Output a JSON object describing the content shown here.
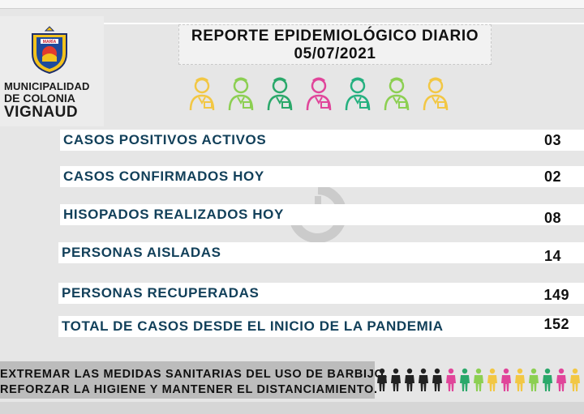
{
  "logo": {
    "crest_text": "MARÍA",
    "line1": "MUNICIPALIDAD",
    "line2": "DE COLONIA",
    "line3": "VIGNAUD"
  },
  "header": {
    "title": "REPORTE EPIDEMIOLÓGICO DIARIO",
    "date": "05/07/2021"
  },
  "workers": {
    "icons": [
      "doctor-icon",
      "nurse-icon",
      "builder-icon",
      "health-worker-icon",
      "delivery-worker-icon",
      "farmer-icon",
      "firefighter-icon"
    ],
    "colors": [
      "#f2c744",
      "#8ccf52",
      "#2aa86a",
      "#e0459a",
      "#25b07f",
      "#8ccf52",
      "#f2c744"
    ]
  },
  "stats": [
    {
      "label": "CASOS POSITIVOS ACTIVOS",
      "value": "03"
    },
    {
      "label": "CASOS CONFIRMADOS HOY",
      "value": "02"
    },
    {
      "label": "HISOPADOS REALIZADOS HOY",
      "value": "08"
    },
    {
      "label": "PERSONAS AISLADAS",
      "value": "14"
    },
    {
      "label": "PERSONAS RECUPERADAS",
      "value": "149"
    },
    {
      "label": "TOTAL DE CASOS DESDE EL INICIO DE LA PANDEMIA",
      "value": "152"
    }
  ],
  "footer": {
    "line1": "EXTREMAR LAS MEDIDAS SANITARIAS DEL USO DE BARBIJO,",
    "line2": "REFORZAR LA HIGIENE Y MANTENER EL DISTANCIAMIENTO.",
    "people_colors": [
      "#222222",
      "#222222",
      "#222222",
      "#222222",
      "#222222",
      "#e0459a",
      "#2aa86a",
      "#8ccf52",
      "#f2c744",
      "#e0459a",
      "#f2c744",
      "#8ccf52",
      "#2aa86a",
      "#e0459a",
      "#f2c744"
    ]
  },
  "colors": {
    "stat_label": "#12405a",
    "background": "#e6e6e6"
  }
}
